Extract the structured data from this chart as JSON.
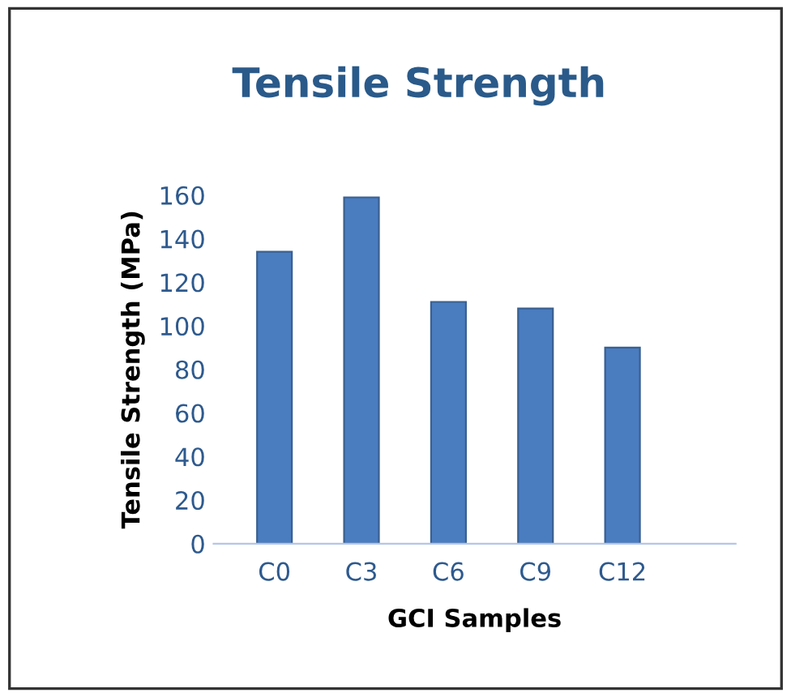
{
  "chart_data": {
    "type": "bar",
    "title": "Tensile Strength",
    "xlabel": "GCI Samples",
    "ylabel": "Tensile Strength (MPa)",
    "categories": [
      "C0",
      "C3",
      "C6",
      "C9",
      "C12"
    ],
    "values": [
      134,
      159,
      111,
      108,
      90
    ],
    "color": "#4a7cc0",
    "ylim": [
      0,
      160
    ],
    "yticks": [
      0,
      20,
      40,
      60,
      80,
      100,
      120,
      140,
      160
    ],
    "grid": false
  }
}
